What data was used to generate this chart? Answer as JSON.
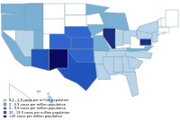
{
  "state_colors": {
    "AL": "#b8d4e8",
    "AK": "#ffffff",
    "AZ": "#2255bb",
    "AR": "#b8d4e8",
    "CA": "#7ab0d4",
    "CO": "#3366cc",
    "CT": "#ffffff",
    "DE": "#ffffff",
    "FL": "#b8d4e8",
    "GA": "#b8d4e8",
    "HI": "#b8d4e8",
    "ID": "#7ab0d4",
    "IL": "#1a2f80",
    "IN": "#b8d4e8",
    "IA": "#7ab0d4",
    "KS": "#3366cc",
    "KY": "#b8d4e8",
    "LA": "#b8d4e8",
    "ME": "#ffffff",
    "MD": "#1a2f80",
    "MA": "#ffffff",
    "MI": "#7ab0d4",
    "MN": "#7ab0d4",
    "MS": "#b8d4e8",
    "MO": "#7ab0d4",
    "MT": "#ffffff",
    "NE": "#3366cc",
    "NV": "#b8d4e8",
    "NH": "#ffffff",
    "NJ": "#b8d4e8",
    "NM": "#0a0a60",
    "NY": "#b8d4e8",
    "NC": "#b8d4e8",
    "ND": "#ffffff",
    "OH": "#b8d4e8",
    "OK": "#3366cc",
    "OR": "#7ab0d4",
    "PA": "#b8d4e8",
    "RI": "#ffffff",
    "SC": "#b8d4e8",
    "SD": "#ffffff",
    "TN": "#b8d4e8",
    "TX": "#2255bb",
    "UT": "#7ab0d4",
    "VT": "#ffffff",
    "VA": "#7ab0d4",
    "WA": "#7ab0d4",
    "WV": "#ffffff",
    "WI": "#7ab0d4",
    "WY": "#ffffff",
    "DC": "#3366cc"
  },
  "legend": [
    {
      "color": "#daeef6",
      "label": "0.1 - 1.9 cases per million population"
    },
    {
      "color": "#7ab0d4",
      "label": "2 - 4.9 cases per million population"
    },
    {
      "color": "#3366cc",
      "label": "5 - 9.9 cases per million population"
    },
    {
      "color": "#2255bb",
      "label": "10 - 19.9 cases per million population"
    },
    {
      "color": "#0a0a60",
      "label": ">20 cases per million population"
    }
  ],
  "background": "#ffffff",
  "border_color": "#7a9ab0",
  "ocean_color": "#daeef6"
}
